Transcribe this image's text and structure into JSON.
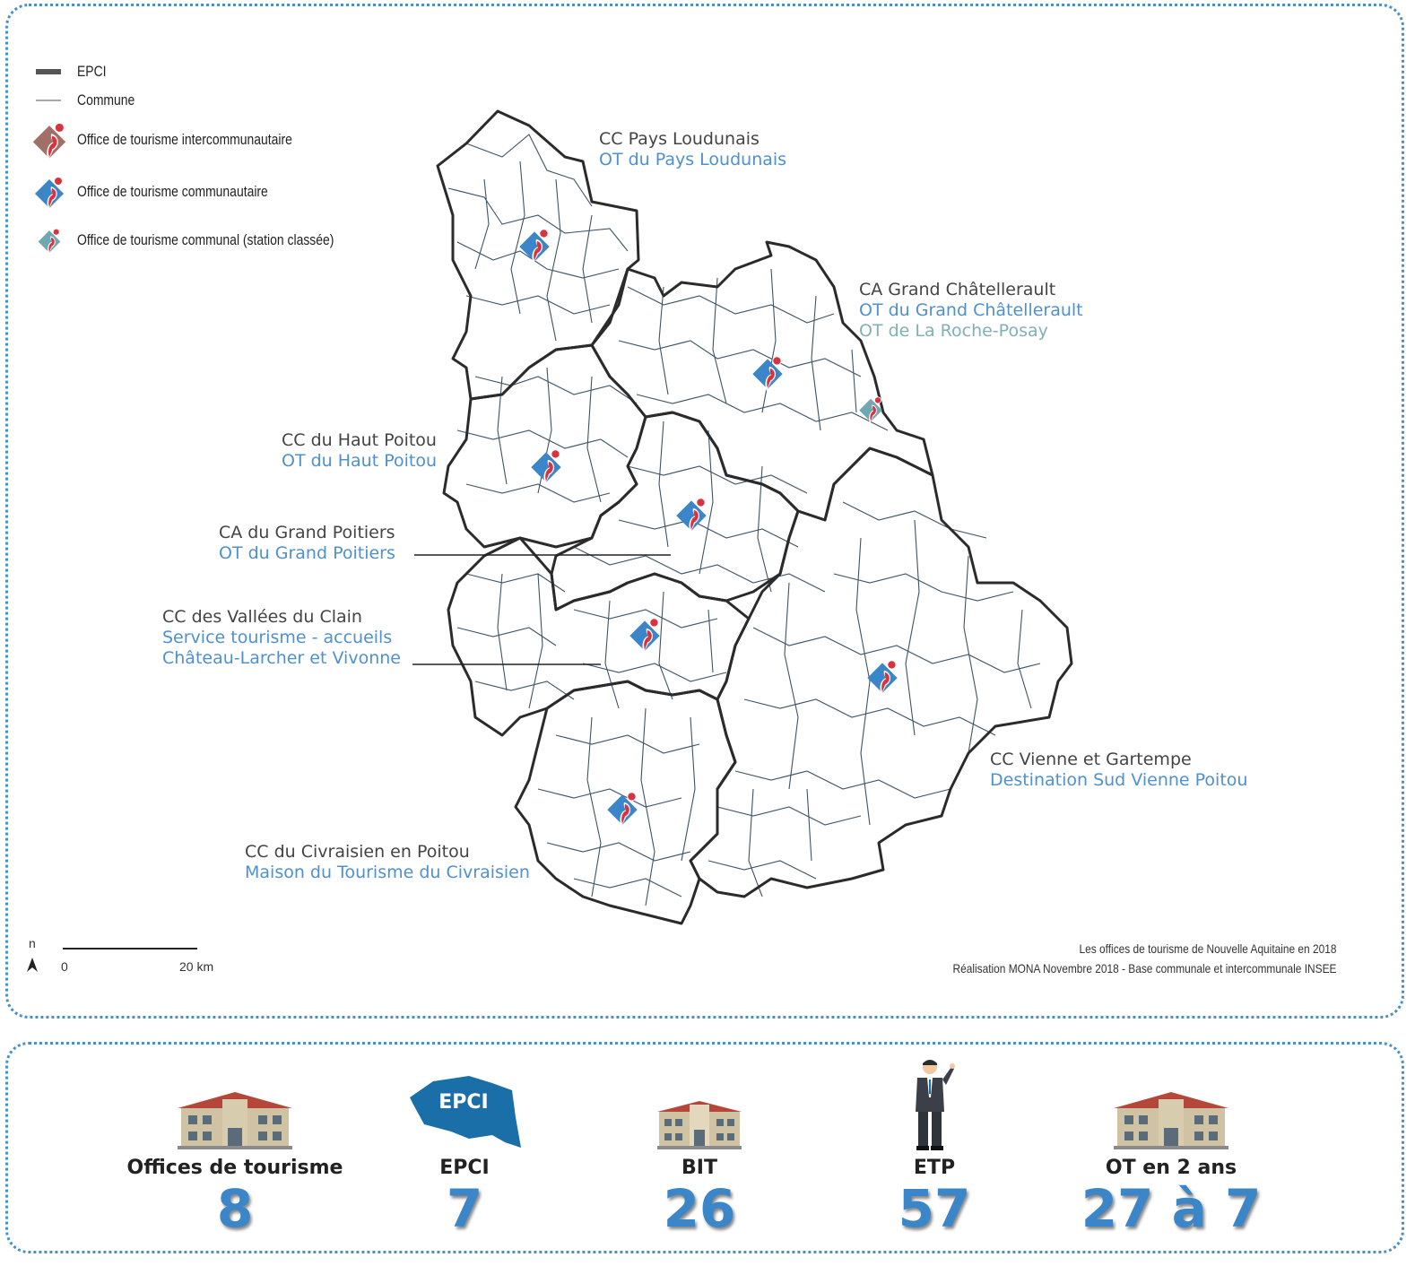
{
  "legend": {
    "items": [
      {
        "label": "EPCI",
        "icon": "epci-line"
      },
      {
        "label": "Commune",
        "icon": "commune-line"
      },
      {
        "label": "Office de tourisme intercommunautaire",
        "icon": "ot-intercommunautaire-icon",
        "color": "#a07068"
      },
      {
        "label": "Office de tourisme communautaire",
        "icon": "ot-communautaire-icon",
        "color": "#3a86c8"
      },
      {
        "label": "Office de tourisme communal (station classée)",
        "icon": "ot-communal-icon",
        "color": "#6fa8b0"
      }
    ]
  },
  "epci_labels": [
    {
      "epci": "CC Pays Loudunais",
      "ot": [
        "OT du Pays Loudunais"
      ]
    },
    {
      "epci": "CA Grand Châtellerault",
      "ot": [
        "OT du Grand Châtellerault"
      ],
      "ot_communal": "OT de La Roche-Posay"
    },
    {
      "epci": "CC du Haut Poitou",
      "ot": [
        "OT du Haut Poitou"
      ]
    },
    {
      "epci": "CA du Grand Poitiers",
      "ot": [
        "OT du Grand Poitiers"
      ]
    },
    {
      "epci": "CC des Vallées du Clain",
      "ot": [
        "Service tourisme - accueils",
        "Château-Larcher et Vivonne"
      ]
    },
    {
      "epci": "CC Vienne et Gartempe",
      "ot": [
        "Destination Sud Vienne Poitou"
      ]
    },
    {
      "epci": "CC du Civraisien en Poitou",
      "ot": [
        "Maison du Tourisme du Civraisien"
      ]
    }
  ],
  "scale": {
    "north": "n",
    "zero": "0",
    "distance": "20 km"
  },
  "source": {
    "line1": "Les offices de tourisme de Nouvelle Aquitaine en 2018",
    "line2": "Réalisation MONA Novembre 2018 - Base communale et intercommunale INSEE"
  },
  "stats": [
    {
      "label": "Offices de tourisme",
      "value": "8",
      "icon": "building-icon"
    },
    {
      "label": "EPCI",
      "value": "7",
      "icon": "epci-map-icon",
      "icon_text": "EPCI"
    },
    {
      "label": "BIT",
      "value": "26",
      "icon": "small-building-icon"
    },
    {
      "label": "ETP",
      "value": "57",
      "icon": "person-icon"
    },
    {
      "label": "OT en 2 ans",
      "value": "27 à 7",
      "icon": "building-icon"
    }
  ],
  "colors": {
    "accent": "#3a86c8",
    "ot_red": "#d8333f",
    "epci_border": "#2b2b2b",
    "commune_border": "#3d5466"
  }
}
